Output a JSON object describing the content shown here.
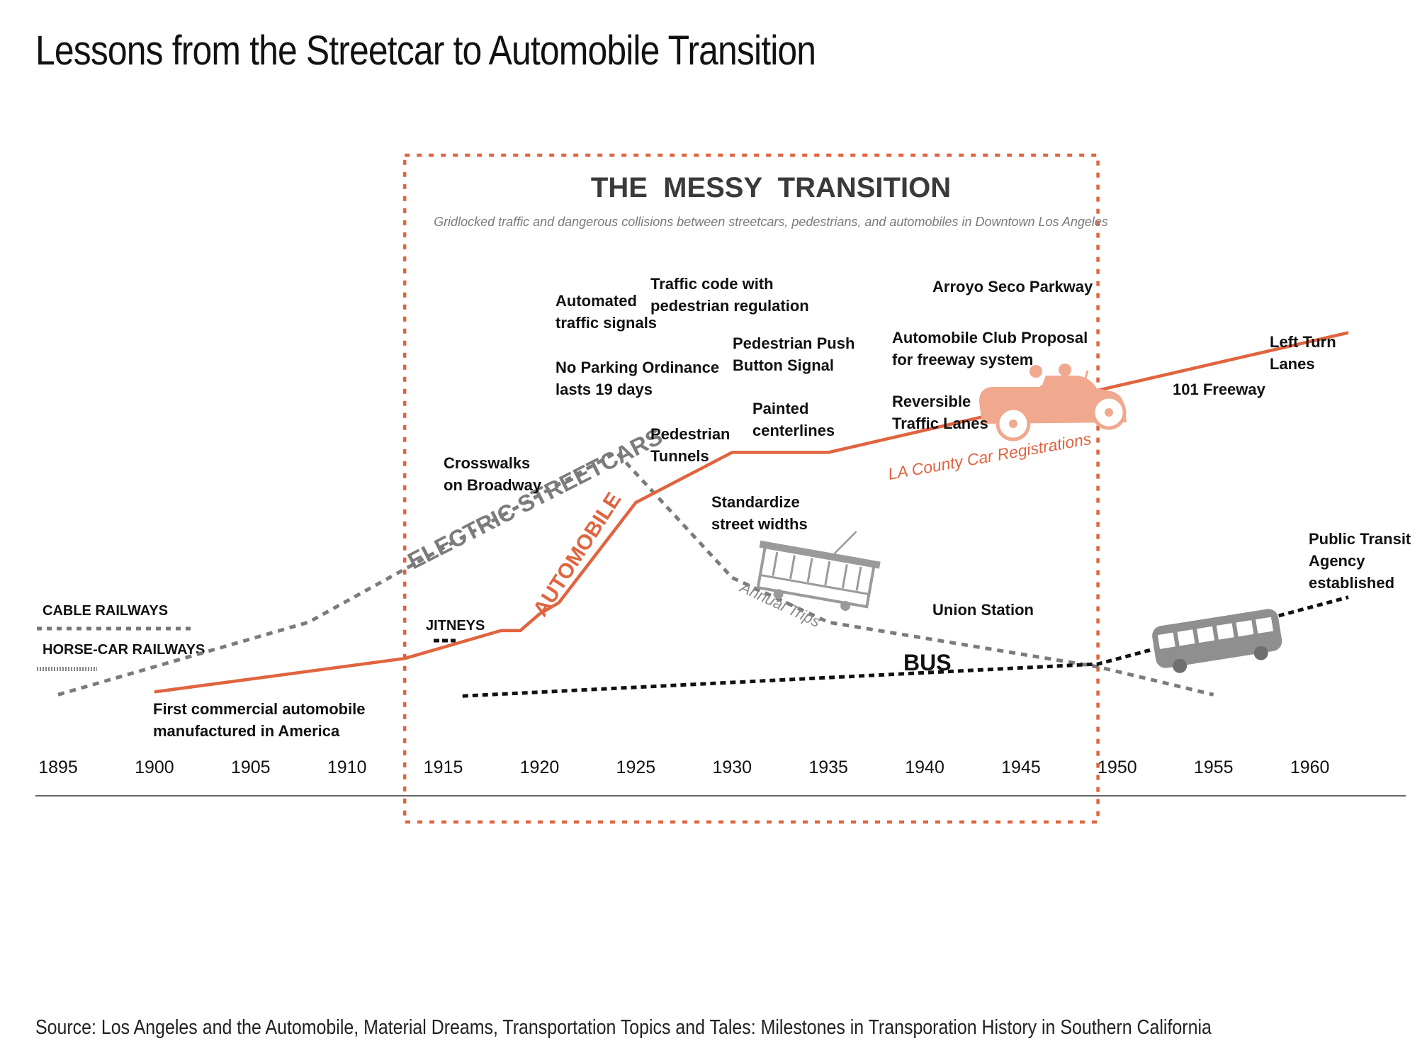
{
  "title": "Lessons from the Streetcar to Automobile Transition",
  "source": "Source: Los Angeles and the Automobile, Material Dreams, Transportation Topics and Tales: Milestones in Transporation History in Southern California",
  "colors": {
    "automobile": "#e0643f",
    "streetcar": "#7b7b7b",
    "bus": "#111111",
    "box": "#e0643f",
    "car_icon": "#f0a98f",
    "tram_icon": "#9a9a9a"
  },
  "icons": [
    "car-icon",
    "streetcar-icon",
    "bus-icon"
  ],
  "transition_box": {
    "title": "THE  MESSY  TRANSITION",
    "subtitle": "Gridlocked traffic and dangerous collisions between streetcars, pedestrians, and automobiles in Downtown Los Angeles",
    "start_year": 1913,
    "end_year": 1949
  },
  "chart_data": {
    "type": "line",
    "xlim": [
      1895,
      1962
    ],
    "ylim": [
      0,
      100
    ],
    "x_ticks": [
      "1895",
      "1900",
      "1905",
      "1910",
      "1915",
      "1920",
      "1925",
      "1930",
      "1935",
      "1940",
      "1945",
      "1950",
      "1955",
      "1960"
    ],
    "grid": false,
    "y_axis": "none (relative, unlabeled)",
    "series": [
      {
        "name": "AUTOMOBILE",
        "label": "LA County Car Registrations",
        "style": "solid",
        "x": [
          1900,
          1913,
          1918,
          1919,
          1920,
          1921,
          1925,
          1930,
          1935,
          1962
        ],
        "y": [
          5,
          17,
          27,
          27,
          33,
          37,
          73,
          91,
          91,
          134
        ]
      },
      {
        "name": "ELECTRIC STREETCARS",
        "label": "Annual Trips",
        "style": "dashed",
        "x": [
          1895,
          1908,
          1924,
          1930,
          1935,
          1949,
          1955
        ],
        "y": [
          4,
          30,
          91,
          46,
          30,
          14,
          4
        ]
      },
      {
        "name": "BUS",
        "style": "dotted",
        "x": [
          1916,
          1949,
          1962
        ],
        "y": [
          3.5,
          15,
          39
        ]
      }
    ],
    "legend_items": [
      {
        "label": "CABLE RAILWAYS",
        "style": "dashed"
      },
      {
        "label": "HORSE-CAR RAILWAYS",
        "style": "fine-dotted"
      },
      {
        "label": "JITNEYS",
        "style": "short-dash"
      }
    ],
    "annotations": [
      {
        "year": 1900,
        "lines": [
          "First commercial automobile",
          "manufactured in America"
        ]
      },
      {
        "year": 1915,
        "lines": [
          "Crosswalks",
          "on Broadway"
        ]
      },
      {
        "year": 1920,
        "lines": [
          "Automated",
          "traffic signals"
        ]
      },
      {
        "year": 1920,
        "lines": [
          "No Parking Ordinance",
          "lasts 19 days"
        ]
      },
      {
        "year": 1925,
        "lines": [
          "Traffic code with",
          "pedestrian regulation"
        ]
      },
      {
        "year": 1925,
        "lines": [
          "Pedestrian",
          "Tunnels"
        ]
      },
      {
        "year": 1928,
        "lines": [
          "Pedestrian Push",
          "Button Signal"
        ]
      },
      {
        "year": 1928,
        "lines": [
          "Standardize",
          "street widths"
        ]
      },
      {
        "year": 1930,
        "lines": [
          "Painted",
          "centerlines"
        ]
      },
      {
        "year": 1938,
        "lines": [
          "Automobile Club Proposal",
          "for freeway system"
        ]
      },
      {
        "year": 1938,
        "lines": [
          "Reversible",
          "Traffic Lanes"
        ]
      },
      {
        "year": 1940,
        "lines": [
          "Arroyo Seco Parkway"
        ]
      },
      {
        "year": 1940,
        "lines": [
          "Union Station"
        ]
      },
      {
        "year": 1951,
        "lines": [
          "101 Freeway"
        ]
      },
      {
        "year": 1956,
        "lines": [
          "Left Turn",
          "Lanes"
        ]
      },
      {
        "year": 1957,
        "lines": [
          "Public Transit",
          "Agency",
          "established"
        ]
      }
    ]
  }
}
